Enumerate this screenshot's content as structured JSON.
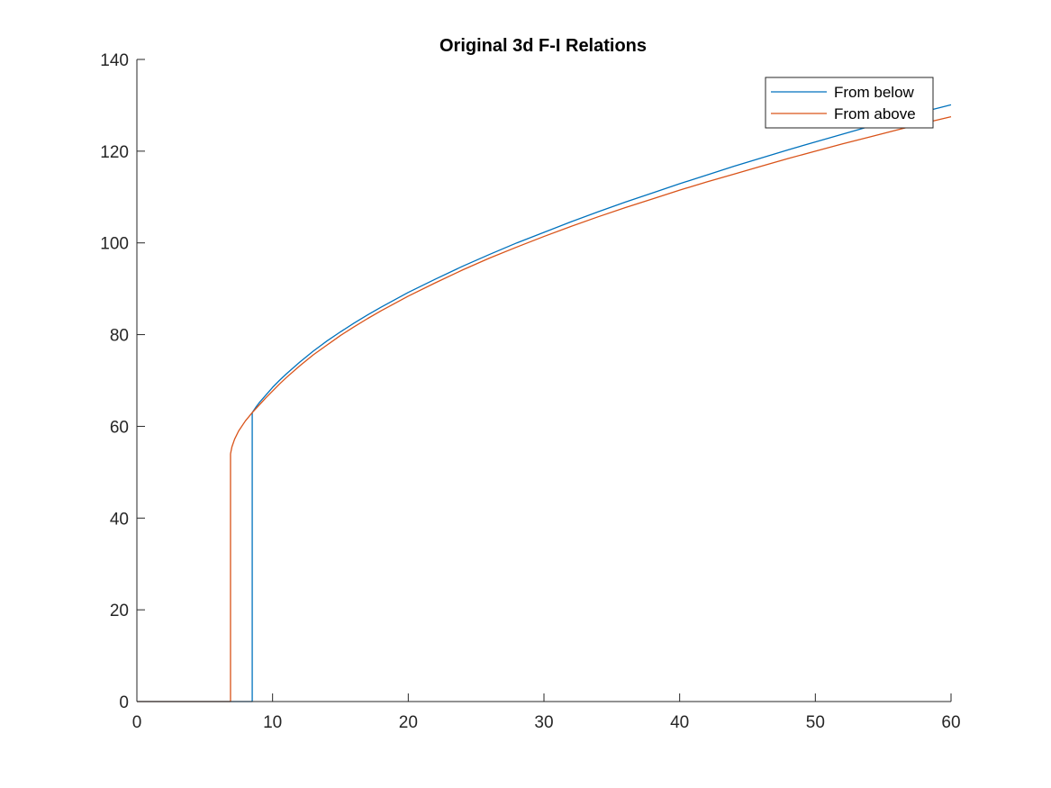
{
  "chart_data": {
    "type": "line",
    "title": "Original 3d F-I Relations",
    "xlabel": "",
    "ylabel": "",
    "xlim": [
      0,
      60
    ],
    "ylim": [
      0,
      140
    ],
    "xticks": [
      0,
      10,
      20,
      30,
      40,
      50,
      60
    ],
    "yticks": [
      0,
      20,
      40,
      60,
      80,
      100,
      120,
      140
    ],
    "grid": false,
    "legend_position": "top-right",
    "series": [
      {
        "name": "From below",
        "color": "#0072BD",
        "x": [
          0,
          8.5,
          8.5,
          8.75,
          9,
          9.5,
          10,
          10.5,
          11,
          12,
          13,
          14,
          15,
          16,
          17,
          18,
          20,
          22,
          24,
          26,
          28,
          30,
          32,
          34,
          36,
          38,
          40,
          42,
          44,
          46,
          48,
          50,
          52,
          54,
          56,
          58,
          60
        ],
        "y": [
          0,
          0,
          63,
          64.1,
          65.1,
          66.8,
          68.5,
          70.0,
          71.4,
          74.0,
          76.4,
          78.6,
          80.6,
          82.5,
          84.3,
          86.0,
          89.2,
          92.1,
          94.9,
          97.5,
          100.0,
          102.3,
          104.6,
          106.8,
          108.9,
          110.9,
          112.9,
          114.8,
          116.7,
          118.5,
          120.3,
          122.0,
          123.7,
          125.4,
          127.0,
          128.6,
          130.1
        ]
      },
      {
        "name": "From above",
        "color": "#D95319",
        "x": [
          0,
          6.9,
          6.9,
          7.0,
          7.2,
          7.5,
          8.0,
          8.5,
          9.0,
          9.5,
          10,
          10.5,
          11,
          12,
          13,
          14,
          15,
          16,
          17,
          18,
          20,
          22,
          24,
          26,
          28,
          30,
          32,
          34,
          36,
          38,
          40,
          42,
          44,
          46,
          48,
          50,
          52,
          54,
          56,
          58,
          60
        ],
        "y": [
          0,
          0,
          54,
          55.5,
          57.2,
          59.0,
          61.2,
          63.0,
          64.6,
          66.2,
          67.7,
          69.2,
          70.6,
          73.2,
          75.6,
          77.7,
          79.8,
          81.7,
          83.5,
          85.2,
          88.4,
          91.3,
          94.1,
          96.7,
          99.1,
          101.4,
          103.6,
          105.7,
          107.7,
          109.6,
          111.5,
          113.3,
          115.0,
          116.7,
          118.4,
          120.0,
          121.6,
          123.1,
          124.6,
          126.1,
          127.5
        ]
      }
    ]
  }
}
